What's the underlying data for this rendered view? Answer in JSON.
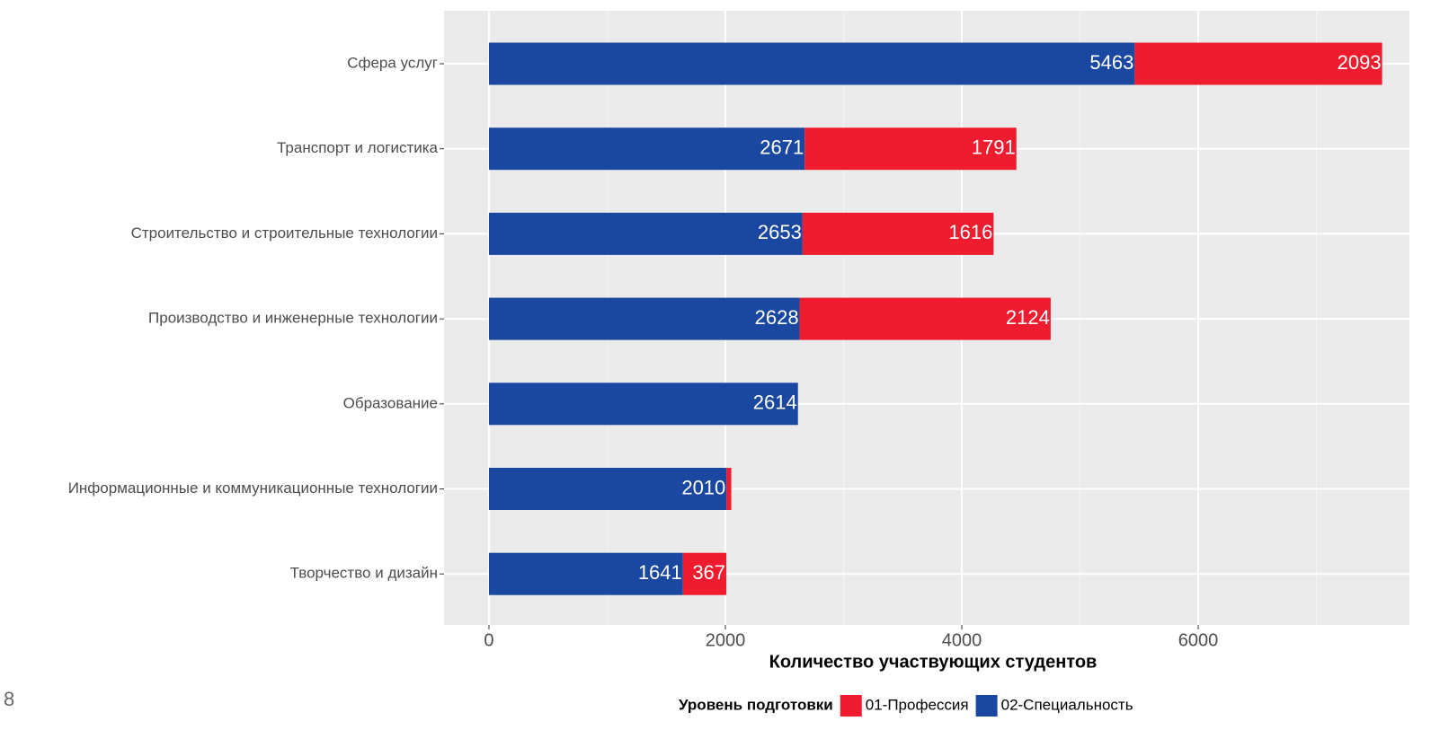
{
  "chart_data": {
    "type": "stacked-barh",
    "x_label": "Количество участвующих студентов",
    "categories": [
      "Сфера услуг",
      "Транспорт и логистика",
      "Строительство и строительные технологии",
      "Производство и инженерные технологии",
      "Образование",
      "Информационные и коммуникационные технологии",
      "Творчество и дизайн"
    ],
    "series": [
      {
        "name": "01-Профессия",
        "color": "#ee1c2e",
        "values": [
          2093,
          1791,
          1616,
          2124,
          null,
          40,
          367
        ]
      },
      {
        "name": "02-Специальность",
        "color": "#1a47a0",
        "values": [
          5463,
          2671,
          2653,
          2628,
          2614,
          2010,
          1641
        ]
      }
    ],
    "legend_title": "Уровень подготовки",
    "legend": "bottom",
    "xlim": [
      -380,
      7787
    ],
    "xticks": [
      0,
      2000,
      4000,
      6000
    ],
    "xminorticks": [
      1000,
      3000,
      5000,
      7000
    ],
    "grid": true
  },
  "page_number": "8"
}
